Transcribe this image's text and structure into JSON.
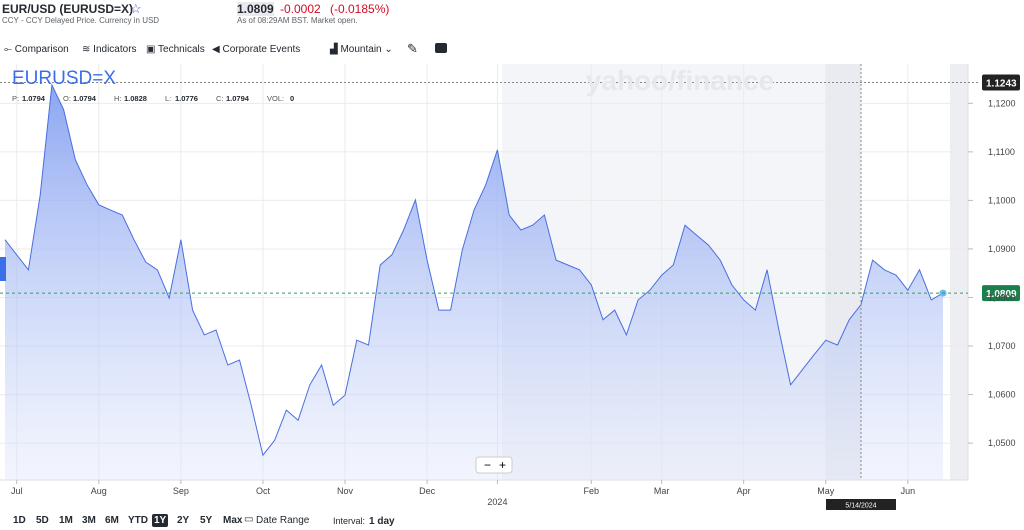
{
  "header": {
    "title": "EUR/USD (EURUSD=X)",
    "subtitle": "CCY - CCY Delayed Price. Currency in USD",
    "price": "1.0809",
    "change": "-0.0002",
    "change_pct": "(-0.0185%)",
    "status": "As of 08:29AM BST. Market open."
  },
  "toolbar": [
    "Comparison",
    "Indicators",
    "Technicals",
    "Corporate Events",
    "Mountain"
  ],
  "overlay": {
    "symbol": "EURUSD=X",
    "stats": [
      [
        "P:",
        "1.0794"
      ],
      [
        "O:",
        "1.0794"
      ],
      [
        "H:",
        "1.0828"
      ],
      [
        "L:",
        "1.0776"
      ],
      [
        "C:",
        "1.0794"
      ],
      [
        "VOL:",
        "0"
      ]
    ],
    "watermark": "yahoo/finance"
  },
  "chart_data": {
    "type": "area",
    "color": "#4a6ee0",
    "categories": [
      null,
      "Jul",
      null,
      null,
      null,
      null,
      null,
      null,
      "Aug",
      null,
      null,
      null,
      null,
      null,
      null,
      "Sep",
      null,
      null,
      null,
      null,
      null,
      null,
      "Oct",
      null,
      null,
      null,
      null,
      null,
      null,
      "Nov",
      null,
      null,
      null,
      null,
      null,
      null,
      "Dec",
      null,
      null,
      null,
      null,
      null,
      "2024",
      null,
      null,
      null,
      null,
      null,
      null,
      null,
      "Feb",
      null,
      null,
      null,
      null,
      null,
      "Mar",
      null,
      null,
      null,
      null,
      null,
      null,
      "Apr",
      null,
      null,
      null,
      null,
      null,
      null,
      "May",
      null,
      null,
      null,
      null,
      null,
      null,
      "Jun",
      null,
      null,
      null
    ],
    "series": [
      {
        "name": "EURUSD=X",
        "color": "#4a6ee0",
        "values": [
          1.0919,
          1.0888,
          1.0857,
          1.1011,
          1.1238,
          1.1187,
          1.1084,
          1.1032,
          1.0991,
          1.098,
          1.097,
          1.0919,
          1.0873,
          1.0857,
          1.0799,
          1.0919,
          1.0774,
          1.0723,
          1.0733,
          1.0661,
          1.0671,
          1.0578,
          1.0475,
          1.0506,
          1.0568,
          1.0547,
          1.062,
          1.0661,
          1.0578,
          1.0599,
          1.0712,
          1.0702,
          1.0867,
          1.0888,
          1.0939,
          1.1001,
          1.0877,
          1.0774,
          1.0774,
          1.0898,
          1.098,
          1.1032,
          1.1104,
          1.097,
          1.0939,
          1.0949,
          1.097,
          1.0877,
          1.0867,
          1.0857,
          1.0826,
          1.0754,
          1.0774,
          1.0723,
          1.0795,
          1.0815,
          1.0846,
          1.0867,
          1.0949,
          1.0928,
          1.0908,
          1.0877,
          1.0826,
          1.0795,
          1.0774,
          1.0857,
          1.0733,
          1.062,
          1.0651,
          1.0682,
          1.0712,
          1.0702,
          1.0754,
          1.0785,
          1.0877,
          1.0857,
          1.0846,
          1.0815,
          1.0857,
          1.0795,
          1.0809
        ]
      }
    ],
    "ylim": [
      1.0424,
      1.1281
    ],
    "yticks": [
      {
        "value": 1.05,
        "label": "1,0500"
      },
      {
        "value": 1.06,
        "label": "1,0600"
      },
      {
        "value": 1.07,
        "label": "1,0700"
      },
      {
        "value": 1.08,
        "label": "1,0800"
      },
      {
        "value": 1.09,
        "label": "1,0900"
      },
      {
        "value": 1.1,
        "label": "1,1000"
      },
      {
        "value": 1.11,
        "label": "1,1100"
      },
      {
        "value": 1.12,
        "label": "1,1200"
      }
    ],
    "grid": true,
    "last_price": 1.0809,
    "crosshair_value": 1.1243,
    "crosshair_date": "5/14/2024"
  },
  "footer": {
    "ranges": [
      "1D",
      "5D",
      "1M",
      "3M",
      "6M",
      "YTD",
      "1Y",
      "2Y",
      "5Y",
      "Max"
    ],
    "active_range": "1Y",
    "date_range": "Date Range",
    "interval_label": "Interval:",
    "interval": "1 day"
  }
}
